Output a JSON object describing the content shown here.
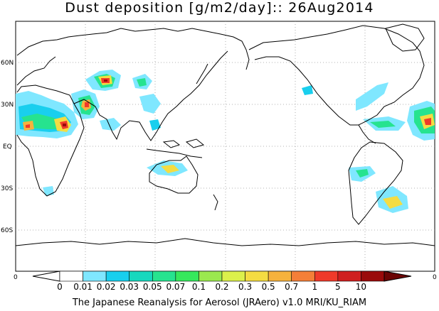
{
  "title": "Dust deposition [g/m2/day]:: 26Aug2014",
  "footer": "The Japanese Reanalysis for Aerosol (JRAero) v1.0 MRI/KU_RIAM",
  "lat_labels": [
    "60N",
    "30N",
    "EQ",
    "30S",
    "60S"
  ],
  "lon_edge_labels": {
    "left": "0",
    "right": "0"
  },
  "colorbar": {
    "labels": [
      "0",
      "0.01",
      "0.02",
      "0.03",
      "0.05",
      "0.07",
      "0.1",
      "0.2",
      "0.3",
      "0.5",
      "0.7",
      "1",
      "5",
      "10"
    ],
    "colors": [
      "#ffffff",
      "#7fe7ff",
      "#19cfee",
      "#17d8be",
      "#26e38f",
      "#36e85c",
      "#9be84f",
      "#dcf04b",
      "#f4dc42",
      "#f6b23d",
      "#f47f38",
      "#ef3a2a",
      "#cf1f1f",
      "#9a0b0b"
    ],
    "arrow_left": "#ffffff",
    "arrow_right": "#6b0505"
  },
  "colors": {
    "land_outline": "#000000",
    "grid": "#9a9a9a"
  }
}
